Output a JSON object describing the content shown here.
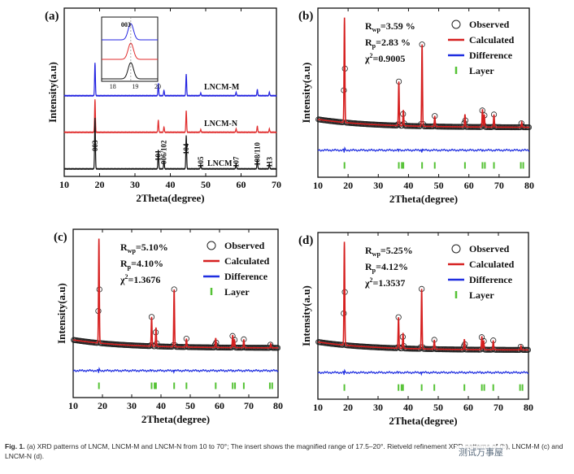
{
  "figure": {
    "caption_label": "Fig. 1.",
    "caption_text": "(a) XRD patterns of LNCM, LNCM-M and LNCM-N from 10 to 70°; The insert shows the magnified range of 17.5–20°. Rietveld refinement XRD patterns of (b), LNCM-M (c) and LNCM-N (d).",
    "watermark": "测试万事屋"
  },
  "chart_data": [
    {
      "type": "line",
      "panel": "(a)",
      "title": "",
      "xlabel": "2Theta(degree)",
      "ylabel": "Intensity(a.u)",
      "xlim": [
        10,
        70
      ],
      "xticks": [
        10,
        20,
        30,
        40,
        50,
        60,
        70
      ],
      "series": [
        {
          "name": "LNCM-M",
          "color": "#2323e0",
          "offset": 2.0
        },
        {
          "name": "LNCM-N",
          "color": "#e02b2b",
          "offset": 1.0
        },
        {
          "name": "LNCM",
          "color": "#111111",
          "offset": 0.0
        }
      ],
      "peaks": [
        {
          "label": "003",
          "x": 18.7,
          "h": 0.95
        },
        {
          "label": "101",
          "x": 36.6,
          "h": 0.35
        },
        {
          "label": "006/102",
          "x": 38.2,
          "h": 0.15
        },
        {
          "label": "104",
          "x": 44.5,
          "h": 0.62
        },
        {
          "label": "105",
          "x": 48.6,
          "h": 0.08
        },
        {
          "label": "107",
          "x": 58.6,
          "h": 0.1
        },
        {
          "label": "108/110",
          "x": 64.6,
          "h": 0.18
        },
        {
          "label": "113",
          "x": 68.0,
          "h": 0.1
        }
      ],
      "inset": {
        "peak_label": "003",
        "xlim": [
          17.5,
          20
        ],
        "xticks": [
          18,
          19,
          20
        ],
        "peak_x": 18.8
      }
    },
    {
      "type": "scatter",
      "panel": "(b)",
      "xlabel": "2Theta(degree)",
      "ylabel": "Intensity(a.u)",
      "xlim": [
        10,
        80
      ],
      "xticks": [
        10,
        20,
        30,
        40,
        50,
        60,
        70,
        80
      ],
      "stats": {
        "rwp": "3.59 %",
        "rp": "2.83 %",
        "chi2": "0.9005"
      },
      "legend": [
        "Observed",
        "Calculated",
        "Difference",
        "Layer"
      ],
      "peaks": [
        {
          "x": 18.8,
          "h": 1.0
        },
        {
          "x": 36.8,
          "h": 0.42
        },
        {
          "x": 38.3,
          "h": 0.15
        },
        {
          "x": 44.5,
          "h": 0.78
        },
        {
          "x": 48.7,
          "h": 0.1
        },
        {
          "x": 58.7,
          "h": 0.12
        },
        {
          "x": 64.5,
          "h": 0.17
        },
        {
          "x": 65.1,
          "h": 0.12
        },
        {
          "x": 68.3,
          "h": 0.12
        },
        {
          "x": 77.5,
          "h": 0.05
        }
      ],
      "bragg": [
        18.8,
        36.8,
        37.8,
        38.3,
        44.5,
        48.7,
        58.7,
        64.5,
        65.3,
        68.3,
        77.2,
        78.0
      ]
    },
    {
      "type": "scatter",
      "panel": "(c)",
      "xlabel": "2Theta(degree)",
      "ylabel": "Intensity(a.u)",
      "xlim": [
        10,
        80
      ],
      "xticks": [
        10,
        20,
        30,
        40,
        50,
        60,
        70,
        80
      ],
      "stats": {
        "rwp": "5.10%",
        "rp": "4.10%",
        "chi2": "1.3676"
      },
      "legend": [
        "Observed",
        "Calculated",
        "Difference",
        "Layer"
      ],
      "peaks": [
        {
          "x": 18.8,
          "h": 1.0
        },
        {
          "x": 36.8,
          "h": 0.28
        },
        {
          "x": 38.3,
          "h": 0.18
        },
        {
          "x": 44.5,
          "h": 0.55
        },
        {
          "x": 48.7,
          "h": 0.08
        },
        {
          "x": 58.7,
          "h": 0.09
        },
        {
          "x": 64.5,
          "h": 0.12
        },
        {
          "x": 65.1,
          "h": 0.08
        },
        {
          "x": 68.3,
          "h": 0.08
        },
        {
          "x": 77.5,
          "h": 0.04
        }
      ],
      "bragg": [
        18.8,
        36.8,
        37.8,
        38.3,
        44.5,
        48.7,
        58.7,
        64.5,
        65.3,
        68.3,
        77.2,
        78.0
      ]
    },
    {
      "type": "scatter",
      "panel": "(d)",
      "xlabel": "2Theta(degree)",
      "ylabel": "Intensity(a.u)",
      "xlim": [
        10,
        80
      ],
      "xticks": [
        10,
        20,
        30,
        40,
        50,
        60,
        70,
        80
      ],
      "stats": {
        "rwp": "5.25%",
        "rp": "4.12%",
        "chi2": "1.3537"
      },
      "legend": [
        "Observed",
        "Calculated",
        "Difference",
        "Layer"
      ],
      "peaks": [
        {
          "x": 18.8,
          "h": 1.0
        },
        {
          "x": 36.8,
          "h": 0.3
        },
        {
          "x": 38.3,
          "h": 0.15
        },
        {
          "x": 44.5,
          "h": 0.58
        },
        {
          "x": 48.7,
          "h": 0.09
        },
        {
          "x": 58.7,
          "h": 0.1
        },
        {
          "x": 64.5,
          "h": 0.13
        },
        {
          "x": 65.1,
          "h": 0.09
        },
        {
          "x": 68.3,
          "h": 0.09
        },
        {
          "x": 77.5,
          "h": 0.04
        }
      ],
      "bragg": [
        18.8,
        36.8,
        37.8,
        38.3,
        44.5,
        48.7,
        58.7,
        64.5,
        65.3,
        68.3,
        77.2,
        78.0
      ]
    }
  ]
}
